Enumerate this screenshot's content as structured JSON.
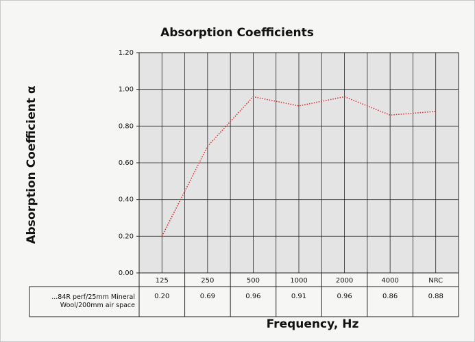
{
  "chart_data": {
    "type": "line",
    "title": "Absorption Coefficients",
    "y_label": "Absorption Coefficient α",
    "x_label": "Frequency, Hz",
    "categories": [
      "125",
      "250",
      "500",
      "1000",
      "2000",
      "4000",
      "NRC"
    ],
    "series": [
      {
        "name": "...84R perf/25mm Mineral Wool/200mm air space",
        "color": "#d62a2a",
        "values": [
          0.2,
          0.69,
          0.96,
          0.91,
          0.96,
          0.86,
          0.88
        ],
        "value_labels": [
          "0.20",
          "0.69",
          "0.96",
          "0.91",
          "0.96",
          "0.86",
          "0.88"
        ]
      }
    ],
    "ylim": [
      0,
      1.2
    ],
    "yticks": [
      {
        "value": 0,
        "label": "0.00"
      },
      {
        "value": 0.2,
        "label": "0.20"
      },
      {
        "value": 0.4,
        "label": "0.40"
      },
      {
        "value": 0.6,
        "label": "0.60"
      },
      {
        "value": 0.8,
        "label": "0.80"
      },
      {
        "value": 1,
        "label": "1.00"
      },
      {
        "value": 1.2,
        "label": "1.20"
      }
    ],
    "grid": true
  }
}
